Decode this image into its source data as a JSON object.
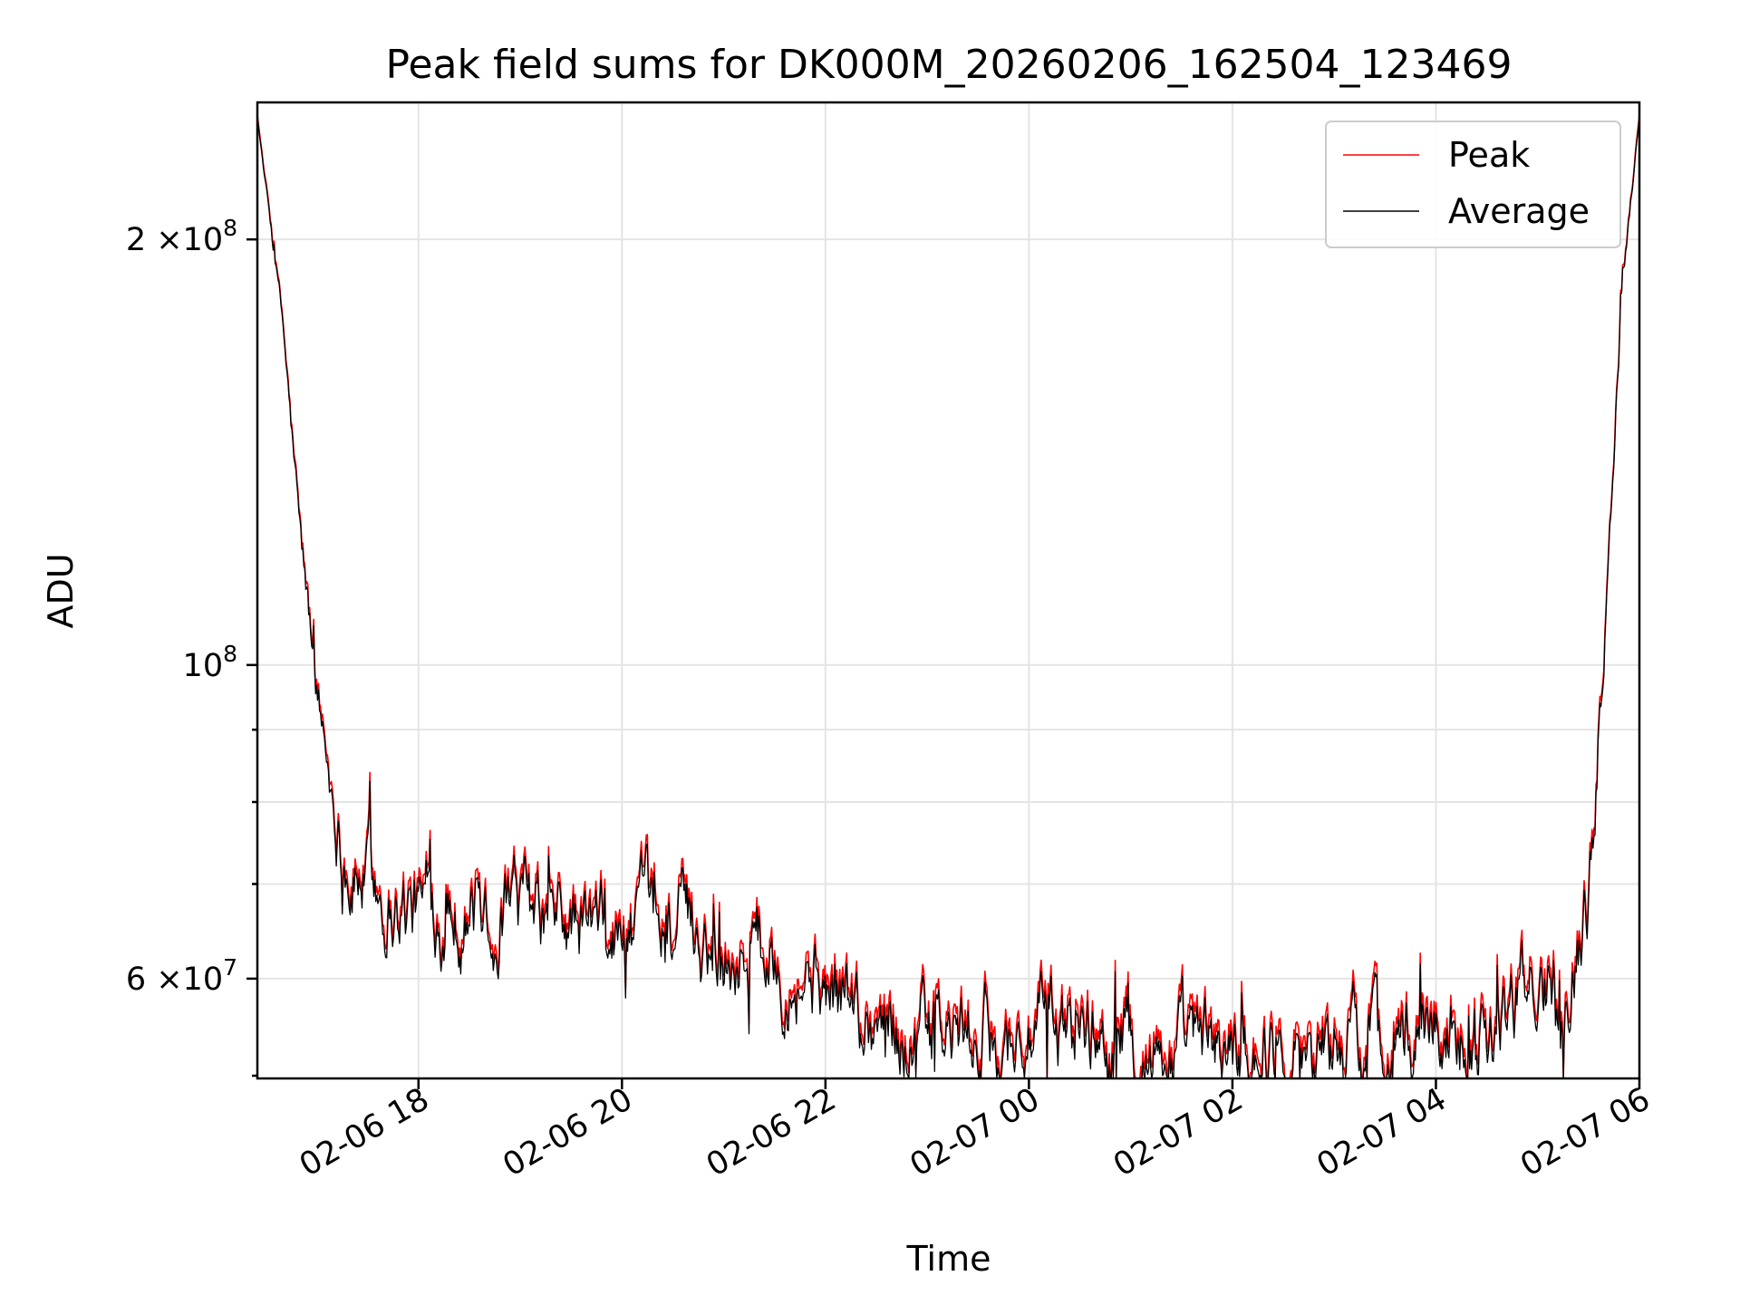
{
  "chart_data": {
    "type": "line",
    "title": "Peak field sums for DK000M_20260206_162504_123469",
    "xlabel": "Time",
    "ylabel": "ADU",
    "x_start": "2026-02-06 16:25",
    "x_end": "2026-02-07 06:00",
    "xlim": [
      "2026-02-06 16:25",
      "2026-02-07 06:00"
    ],
    "x_ticks": [
      "2026-02-06 18:00",
      "2026-02-06 20:00",
      "2026-02-06 22:00",
      "2026-02-07 00:00",
      "2026-02-07 02:00",
      "2026-02-07 04:00",
      "2026-02-07 06:00"
    ],
    "x_tick_labels": [
      "02-06 18",
      "02-06 20",
      "02-06 22",
      "02-07 00",
      "02-07 02",
      "02-07 04",
      "02-07 06"
    ],
    "yscale": "log",
    "ylim": [
      51000000,
      250000000
    ],
    "y_major_ticks": [
      60000000,
      100000000,
      200000000
    ],
    "y_minor_ticks": [
      70000000,
      80000000,
      90000000
    ],
    "y_tick_base": [
      "6",
      "",
      "2"
    ],
    "y_tick_exp": [
      "7",
      "8",
      "8"
    ],
    "y_tick_times": [
      "×10",
      "10",
      "×10"
    ],
    "grid": true,
    "legend_position": "top-right",
    "series": [
      {
        "name": "Peak",
        "color": "#ff0000",
        "x": [
          "2026-02-06 16:25",
          "2026-02-06 16:40",
          "2026-02-06 16:50",
          "2026-02-06 17:00",
          "2026-02-06 17:10",
          "2026-02-06 17:20",
          "2026-02-06 17:30",
          "2026-02-06 17:45",
          "2026-02-06 18:00",
          "2026-02-06 18:30",
          "2026-02-06 19:00",
          "2026-02-06 19:30",
          "2026-02-06 20:00",
          "2026-02-06 20:30",
          "2026-02-06 21:00",
          "2026-02-06 21:30",
          "2026-02-06 22:00",
          "2026-02-06 22:30",
          "2026-02-06 23:00",
          "2026-02-06 23:30",
          "2026-02-07 00:00",
          "2026-02-07 00:30",
          "2026-02-07 01:00",
          "2026-02-07 01:30",
          "2026-02-07 02:00",
          "2026-02-07 02:30",
          "2026-02-07 03:00",
          "2026-02-07 03:30",
          "2026-02-07 04:00",
          "2026-02-07 04:30",
          "2026-02-07 05:00",
          "2026-02-07 05:15",
          "2026-02-07 05:30",
          "2026-02-07 05:40",
          "2026-02-07 05:50",
          "2026-02-07 06:00"
        ],
        "values": [
          245000000,
          175000000,
          125000000,
          97000000,
          81000000,
          72000000,
          72000000,
          69000000,
          68000000,
          68500000,
          67000000,
          66000000,
          65000000,
          67000000,
          64000000,
          64000000,
          60000000,
          57000000,
          55500000,
          55000000,
          55500000,
          56500000,
          55000000,
          54000000,
          54500000,
          54500000,
          55000000,
          55500000,
          56500000,
          57000000,
          60000000,
          62000000,
          68000000,
          110000000,
          190000000,
          245000000
        ]
      },
      {
        "name": "Average",
        "color": "#000000",
        "x": [
          "2026-02-06 16:25",
          "2026-02-06 16:40",
          "2026-02-06 16:50",
          "2026-02-06 17:00",
          "2026-02-06 17:10",
          "2026-02-06 17:20",
          "2026-02-06 17:30",
          "2026-02-06 17:45",
          "2026-02-06 18:00",
          "2026-02-06 18:30",
          "2026-02-06 19:00",
          "2026-02-06 19:30",
          "2026-02-06 20:00",
          "2026-02-06 20:30",
          "2026-02-06 21:00",
          "2026-02-06 21:30",
          "2026-02-06 22:00",
          "2026-02-06 22:30",
          "2026-02-06 23:00",
          "2026-02-06 23:30",
          "2026-02-07 00:00",
          "2026-02-07 00:30",
          "2026-02-07 01:00",
          "2026-02-07 01:30",
          "2026-02-07 02:00",
          "2026-02-07 02:30",
          "2026-02-07 03:00",
          "2026-02-07 03:30",
          "2026-02-07 04:00",
          "2026-02-07 04:30",
          "2026-02-07 05:00",
          "2026-02-07 05:15",
          "2026-02-07 05:30",
          "2026-02-07 05:40",
          "2026-02-07 05:50",
          "2026-02-07 06:00"
        ],
        "values": [
          244000000,
          174000000,
          124000000,
          96000000,
          80000000,
          71000000,
          71000000,
          68000000,
          67000000,
          67500000,
          66000000,
          65000000,
          64000000,
          66000000,
          63000000,
          63000000,
          59000000,
          56000000,
          54500000,
          54000000,
          54500000,
          55500000,
          54000000,
          53000000,
          53500000,
          53500000,
          54000000,
          54500000,
          55500000,
          56000000,
          59000000,
          61000000,
          67000000,
          109000000,
          189000000,
          244000000
        ]
      }
    ]
  }
}
